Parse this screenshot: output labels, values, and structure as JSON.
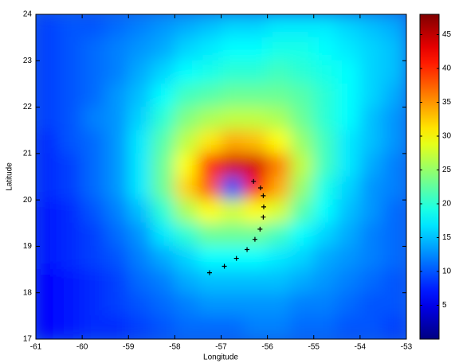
{
  "chart_data": {
    "type": "heatmap",
    "xlabel": "Longitude",
    "ylabel": "Latitude",
    "xlim": [
      -61,
      -53
    ],
    "ylim": [
      17,
      24
    ],
    "xticks": [
      -61,
      -60,
      -59,
      -58,
      -57,
      -56,
      -55,
      -54,
      -53
    ],
    "yticks": [
      17,
      18,
      19,
      20,
      21,
      22,
      23,
      24
    ],
    "colormap": "jet",
    "clim": [
      0,
      48
    ],
    "cticks": [
      5,
      10,
      15,
      20,
      25,
      30,
      35,
      40,
      45
    ],
    "x": [
      -60.75,
      -60.25,
      -59.75,
      -59.25,
      -58.75,
      -58.25,
      -57.75,
      -57.25,
      -56.75,
      -56.25,
      -55.75,
      -55.25,
      -54.75,
      -54.25,
      -53.75,
      -53.25
    ],
    "y": [
      23.75,
      23.25,
      22.75,
      22.25,
      21.75,
      21.25,
      20.75,
      20.25,
      19.75,
      19.25,
      18.75,
      18.25,
      17.75,
      17.25
    ],
    "z": [
      [
        9,
        10,
        10,
        11,
        12,
        13,
        14,
        15,
        16,
        16,
        17,
        17,
        17,
        16,
        15,
        14
      ],
      [
        9,
        10,
        11,
        12,
        13,
        14,
        16,
        17,
        18,
        18,
        19,
        19,
        18,
        17,
        16,
        15
      ],
      [
        9,
        10,
        11,
        12,
        14,
        16,
        18,
        19,
        20,
        20,
        21,
        20,
        19,
        18,
        16,
        15
      ],
      [
        9,
        10,
        11,
        13,
        15,
        18,
        21,
        22,
        23,
        23,
        23,
        22,
        20,
        18,
        16,
        14
      ],
      [
        9,
        10,
        12,
        13,
        16,
        20,
        24,
        26,
        27,
        27,
        26,
        23,
        20,
        18,
        15,
        13
      ],
      [
        8,
        10,
        11,
        13,
        17,
        22,
        27,
        31,
        34,
        33,
        30,
        25,
        21,
        17,
        15,
        13
      ],
      [
        8,
        9,
        11,
        13,
        17,
        23,
        30,
        40,
        44,
        44,
        36,
        27,
        21,
        17,
        14,
        12
      ],
      [
        8,
        9,
        11,
        13,
        17,
        23,
        32,
        38,
        10,
        42,
        34,
        25,
        19,
        16,
        13,
        12
      ],
      [
        7,
        8,
        10,
        12,
        15,
        20,
        26,
        30,
        28,
        30,
        28,
        22,
        18,
        15,
        13,
        11
      ],
      [
        7,
        8,
        9,
        11,
        13,
        17,
        20,
        23,
        23,
        23,
        21,
        18,
        16,
        14,
        12,
        11
      ],
      [
        7,
        8,
        9,
        10,
        12,
        14,
        16,
        18,
        18,
        18,
        17,
        16,
        14,
        13,
        12,
        11
      ],
      [
        6,
        7,
        8,
        9,
        11,
        12,
        14,
        15,
        15,
        15,
        15,
        14,
        13,
        12,
        11,
        10
      ],
      [
        6,
        7,
        8,
        9,
        10,
        11,
        12,
        13,
        13,
        13,
        13,
        12,
        12,
        11,
        10,
        10
      ],
      [
        6,
        7,
        8,
        8,
        9,
        10,
        11,
        11,
        11,
        12,
        12,
        11,
        11,
        10,
        10,
        9
      ]
    ],
    "track": {
      "marker": "+",
      "color": "#000000",
      "x": [
        -57.25,
        -56.93,
        -56.67,
        -56.44,
        -56.27,
        -56.16,
        -56.09,
        -56.08,
        -56.09,
        -56.15,
        -56.3
      ],
      "y": [
        18.43,
        18.57,
        18.74,
        18.93,
        19.15,
        19.37,
        19.63,
        19.85,
        20.09,
        20.26,
        20.4
      ]
    }
  }
}
